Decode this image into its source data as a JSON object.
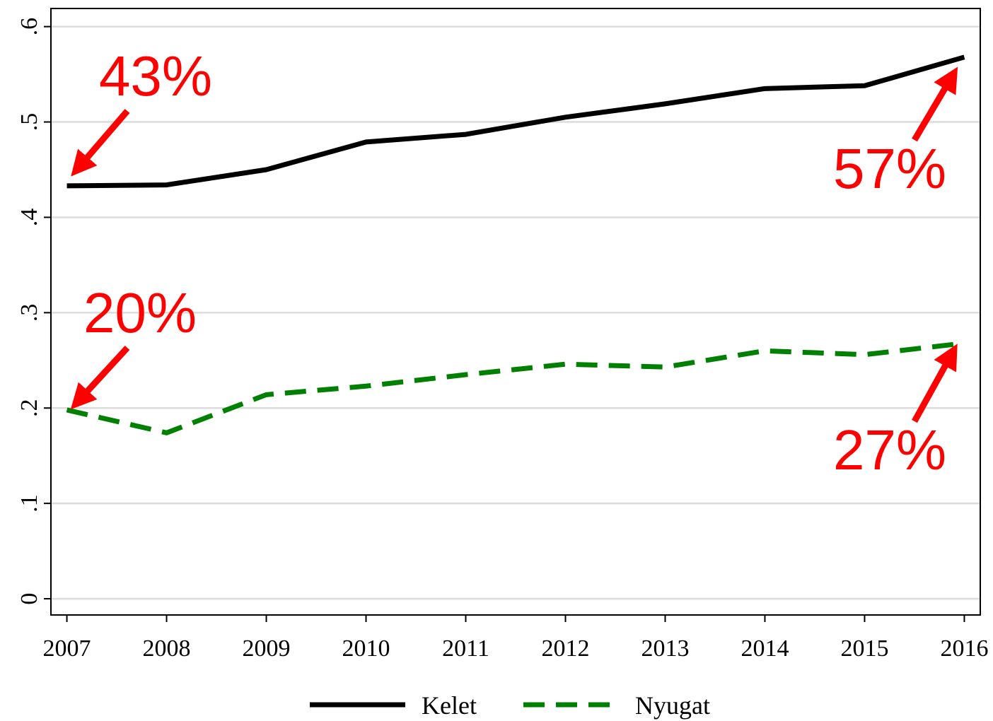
{
  "chart_data": {
    "type": "line",
    "x": [
      2007,
      2008,
      2009,
      2010,
      2011,
      2012,
      2013,
      2014,
      2015,
      2016
    ],
    "series": [
      {
        "name": "Kelet",
        "color": "#000000",
        "values": [
          0.433,
          0.434,
          0.45,
          0.479,
          0.487,
          0.505,
          0.519,
          0.535,
          0.538,
          0.568
        ]
      },
      {
        "name": "Nyugat",
        "color": "#008000",
        "values": [
          0.198,
          0.174,
          0.214,
          0.223,
          0.235,
          0.246,
          0.243,
          0.26,
          0.256,
          0.268
        ]
      }
    ],
    "xlim": [
      2006.84,
      2016.16
    ],
    "xticks": [
      2007,
      2008,
      2009,
      2010,
      2011,
      2012,
      2013,
      2014,
      2015,
      2016
    ],
    "ylim": [
      -0.017,
      0.619
    ],
    "yticks": [
      0,
      {
        "value": 0.1,
        "label": ".1"
      },
      {
        "value": 0.2,
        "label": ".2"
      },
      {
        "value": 0.3,
        "label": ".3"
      },
      {
        "value": 0.4,
        "label": ".4"
      },
      {
        "value": 0.5,
        "label": ".5"
      },
      {
        "value": 0.6,
        "label": ".6"
      }
    ],
    "grid": true,
    "annotations": [
      "43%",
      "57%",
      "20%",
      "27%"
    ]
  }
}
